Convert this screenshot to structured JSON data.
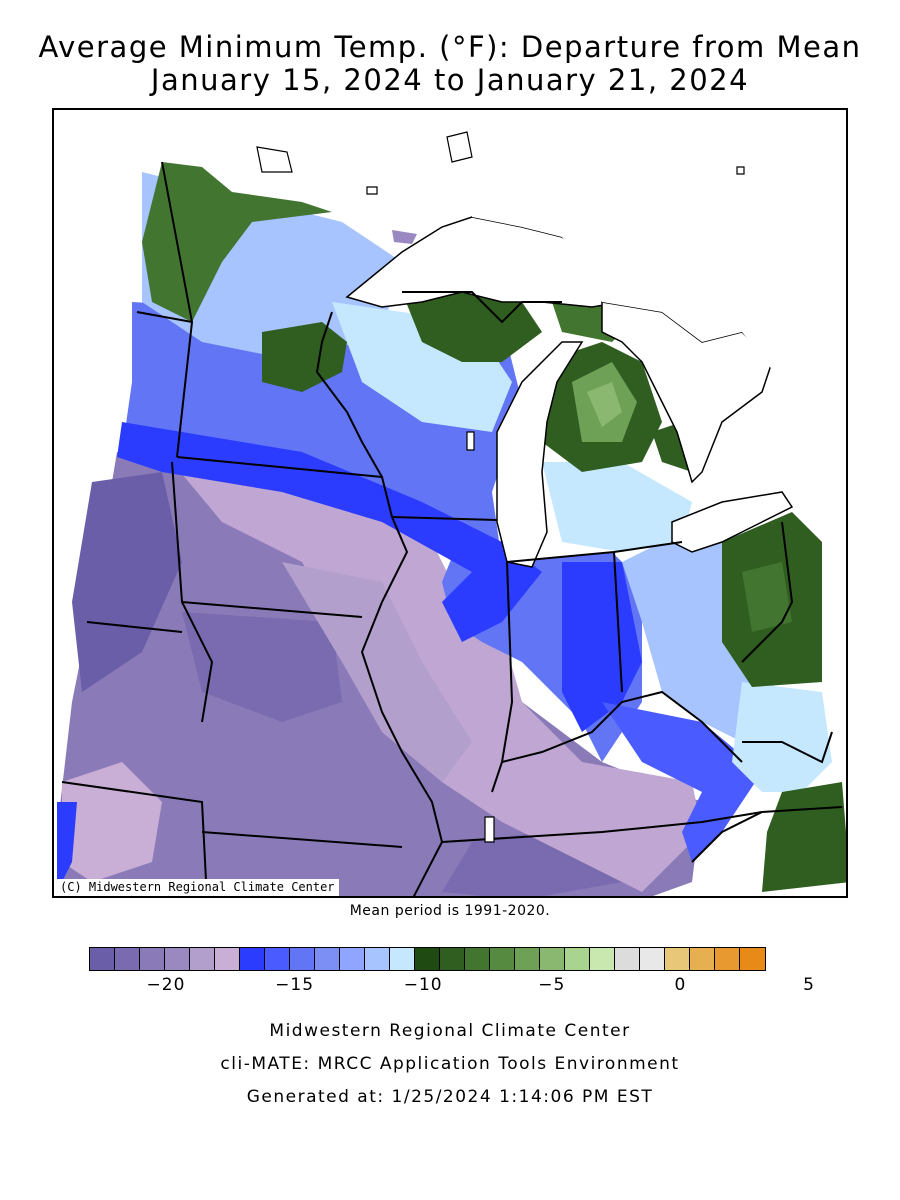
{
  "title_line1": "Average Minimum Temp. (°F): Departure from Mean",
  "title_line2": "January 15, 2024 to January 21, 2024",
  "map": {
    "credit": "(C) Midwestern Regional Climate Center",
    "region": "Midwest United States",
    "states": [
      "Minnesota",
      "Wisconsin",
      "Michigan",
      "Iowa",
      "Illinois",
      "Indiana",
      "Ohio",
      "Missouri",
      "Kentucky"
    ]
  },
  "mean_period": "Mean period is 1991-2020.",
  "legend": {
    "colors": [
      "#6b5ea8",
      "#7a6bb0",
      "#8a7bb8",
      "#9a89c0",
      "#b39fcc",
      "#c9aed6",
      "#2b3cff",
      "#4a5cff",
      "#6175f5",
      "#7b8ff5",
      "#8fa5ff",
      "#a8c4ff",
      "#c5e8ff",
      "#1f4a12",
      "#2f5e20",
      "#427530",
      "#568a40",
      "#6ea055",
      "#8bb870",
      "#a8d490",
      "#c8e8b0",
      "#dcdcdc",
      "#e8e8e8",
      "#e8c878",
      "#e6b050",
      "#e89a30",
      "#e88a18"
    ],
    "ticks": [
      {
        "label": "−20",
        "value": -20
      },
      {
        "label": "−15",
        "value": -15
      },
      {
        "label": "−10",
        "value": -10
      },
      {
        "label": "−5",
        "value": -5
      },
      {
        "label": "0",
        "value": 0
      },
      {
        "label": "5",
        "value": 5
      }
    ]
  },
  "footer": {
    "line1": "Midwestern Regional Climate Center",
    "line2": "cli-MATE: MRCC Application Tools Environment",
    "line3": "Generated at: 1/25/2024 1:14:06 PM EST"
  }
}
